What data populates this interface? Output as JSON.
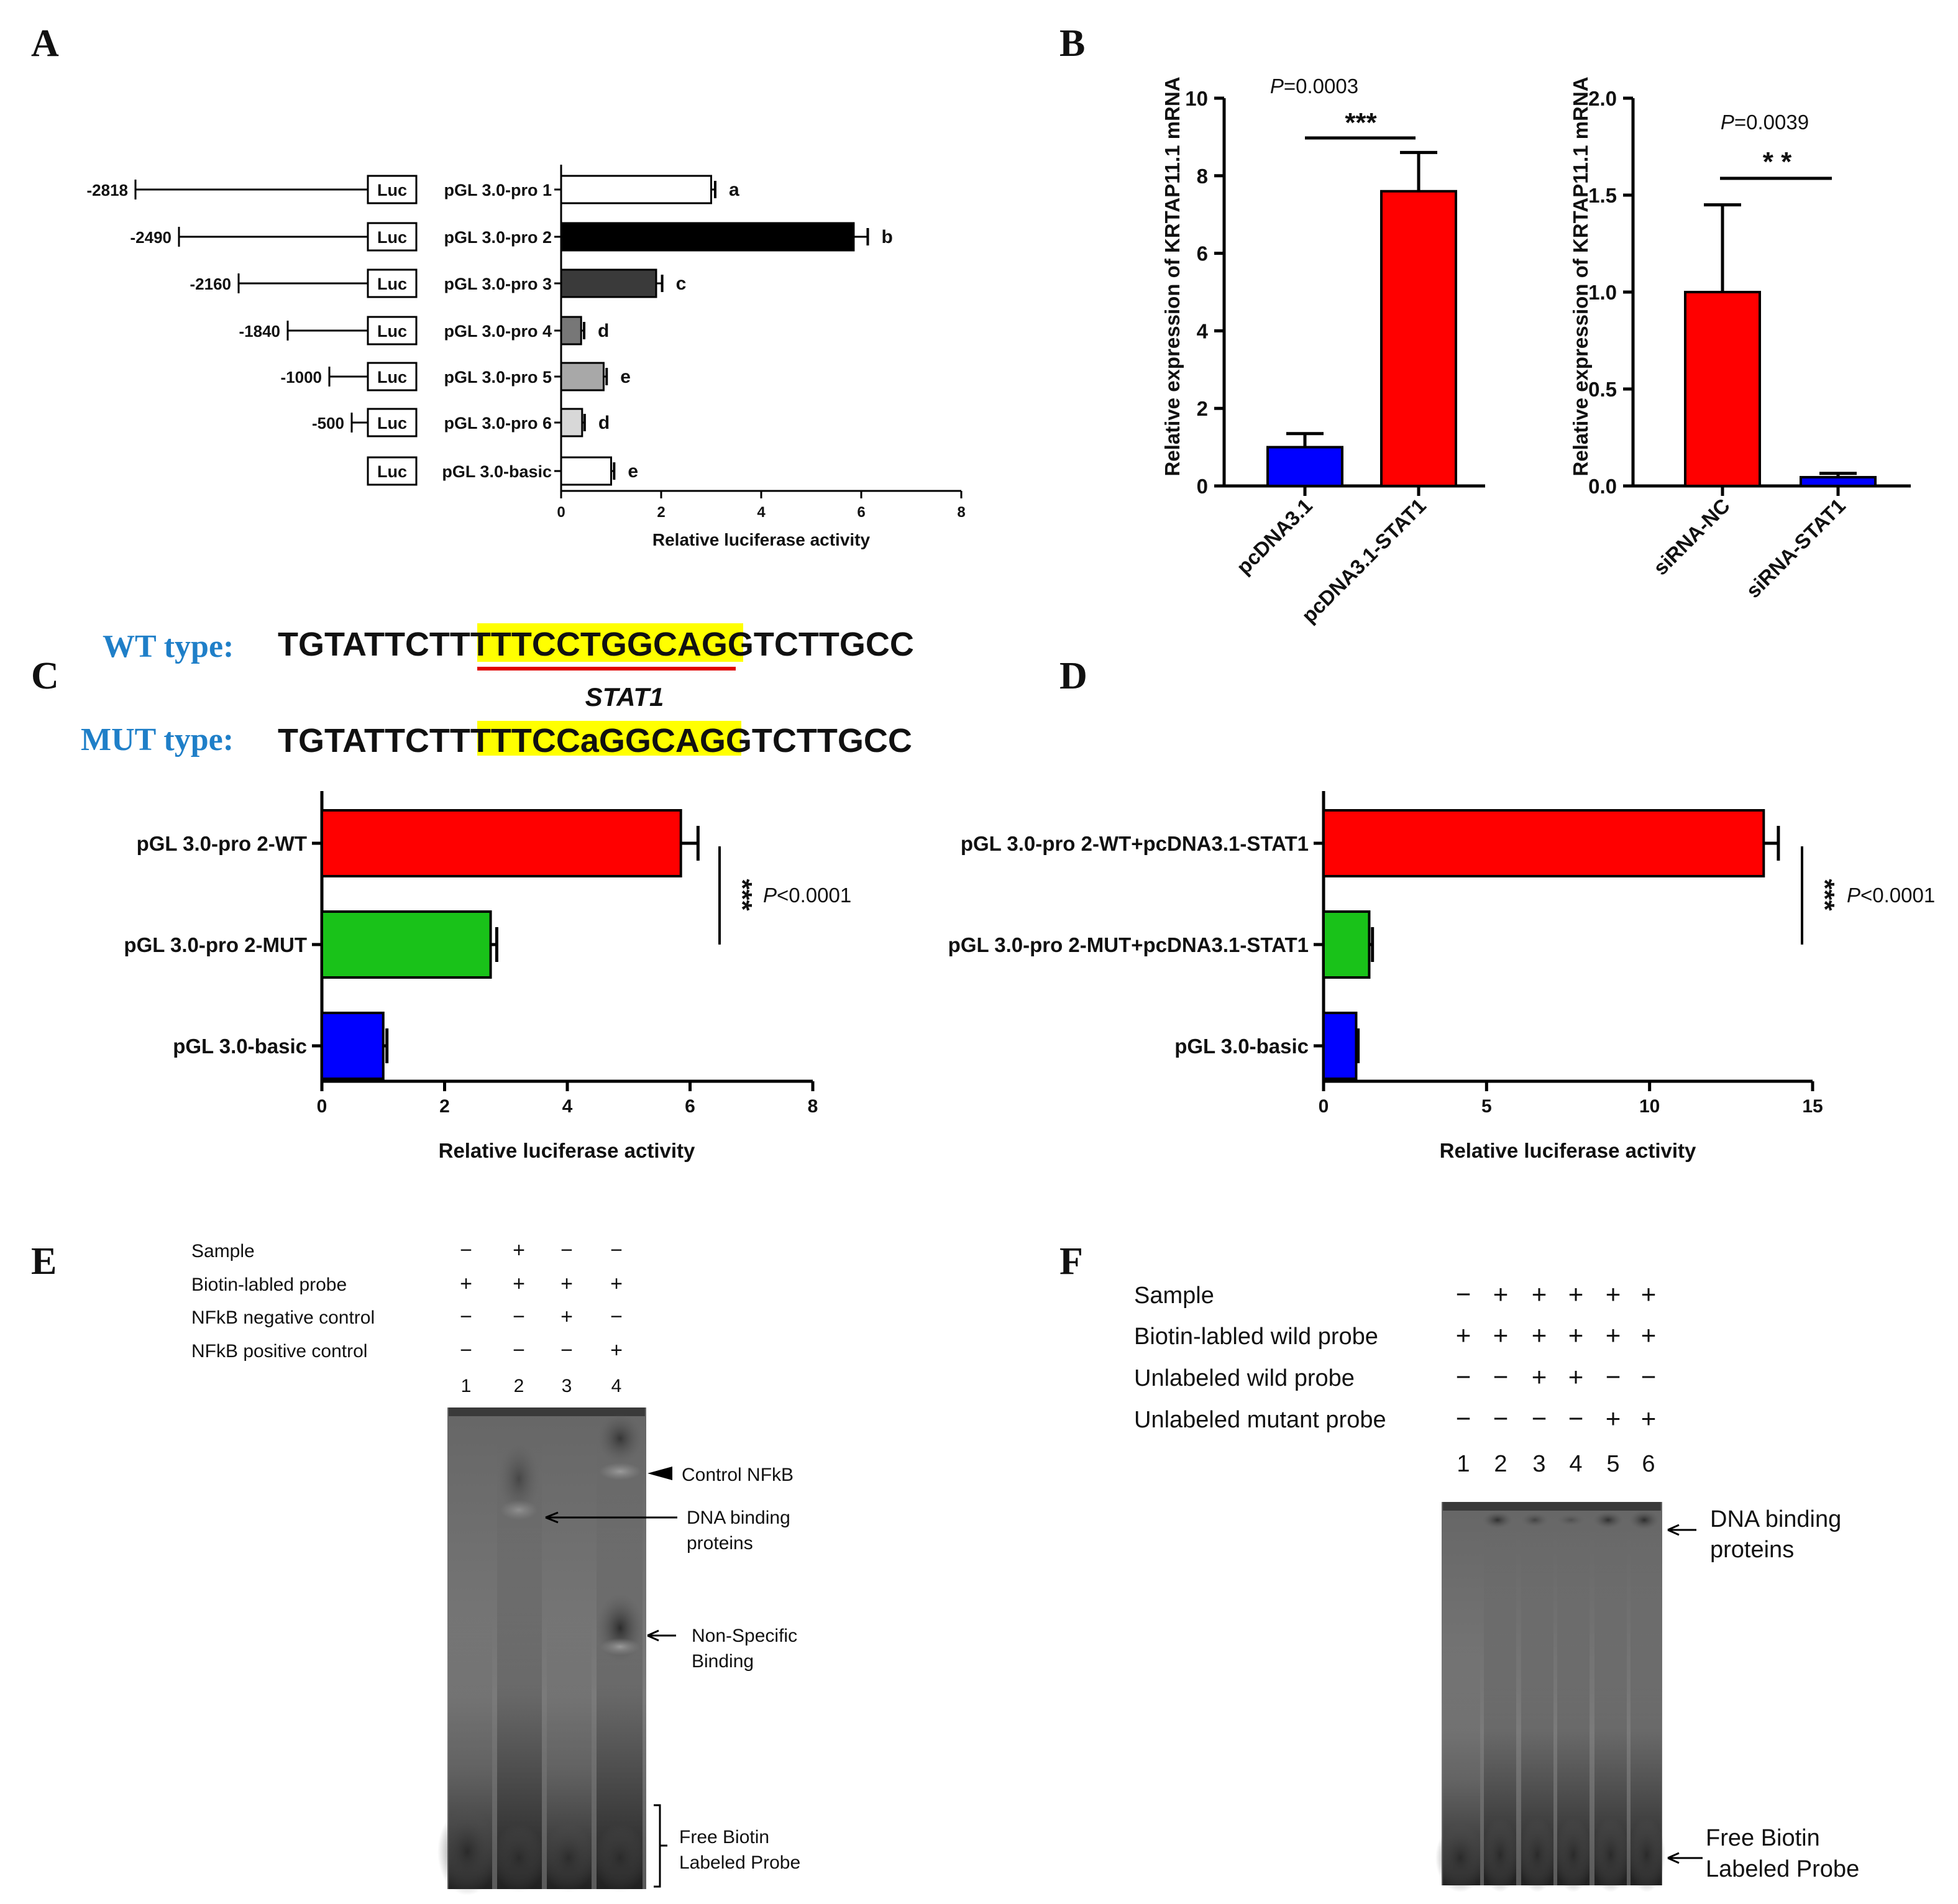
{
  "colors": {
    "red": "#ff0000",
    "green": "#19c219",
    "blue": "#0000ff",
    "gel": "#6f6f6f",
    "highlight": "#ffff00",
    "wt_label": "#1f7fc8"
  },
  "panelA": {
    "letter": "A",
    "xlabel": "Relative luciferase activity",
    "ticks": [
      "0",
      "2",
      "4",
      "6",
      "8"
    ],
    "luc_label": "Luc",
    "constructs": [
      {
        "pos": "-2818",
        "name": "pGL 3.0-pro 1",
        "value": 3.0,
        "err": 0.08,
        "letter": "a",
        "fill": "#ffffff"
      },
      {
        "pos": "-2490",
        "name": "pGL 3.0-pro 2",
        "value": 5.85,
        "err": 0.28,
        "letter": "b",
        "fill": "#000000"
      },
      {
        "pos": "-2160",
        "name": "pGL 3.0-pro 3",
        "value": 1.9,
        "err": 0.12,
        "letter": "c",
        "fill": "#3a3a3a"
      },
      {
        "pos": "-1840",
        "name": "pGL 3.0-pro 4",
        "value": 0.4,
        "err": 0.06,
        "letter": "d",
        "fill": "#777777"
      },
      {
        "pos": "-1000",
        "name": "pGL 3.0-pro 5",
        "value": 0.85,
        "err": 0.06,
        "letter": "e",
        "fill": "#a8a8a8"
      },
      {
        "pos": "-500",
        "name": "pGL 3.0-pro 6",
        "value": 0.42,
        "err": 0.05,
        "letter": "d",
        "fill": "#d8d8d8"
      },
      {
        "pos": "",
        "name": "pGL 3.0-basic",
        "value": 1.0,
        "err": 0.06,
        "letter": "e",
        "fill": "#ffffff"
      }
    ]
  },
  "panelB": {
    "letter": "B",
    "ylabel": "Relative expression of KRTAP11.1 mRNA",
    "left": {
      "p_label": "P",
      "p_value": "=0.0003",
      "stars": "***",
      "ticks": [
        "0",
        "2",
        "4",
        "6",
        "8",
        "10"
      ],
      "ylim": [
        0,
        10
      ],
      "categories": [
        "pcDNA3.1",
        "pcDNA3.1-STAT1"
      ],
      "values": [
        1.0,
        7.6
      ],
      "errors": [
        0.35,
        1.0
      ]
    },
    "right": {
      "p_label": "P",
      "p_value": "=0.0039",
      "stars": "* *",
      "ticks": [
        "0.0",
        "0.5",
        "1.0",
        "1.5",
        "2.0"
      ],
      "ylim": [
        0,
        2
      ],
      "categories": [
        "siRNA-NC",
        "siRNA-STAT1"
      ],
      "values": [
        1.0,
        0.045
      ],
      "errors": [
        0.45,
        0.02
      ]
    }
  },
  "sequence": {
    "wt_label": "WT type:",
    "wt_prefix": "TGTATTCTT",
    "wt_site": "TTTCCTGGCAG",
    "wt_suffix": "GTCTTGCC",
    "tf_label": "STAT1",
    "mut_label": "MUT type:",
    "mut_prefix": "TGTATTCTT",
    "mut_site": "TTTCCaGGCAG",
    "mut_suffix": "GTCTTGCC"
  },
  "panelC": {
    "letter": "C",
    "xlabel": "Relative luciferase activity",
    "ticks": [
      "0",
      "2",
      "4",
      "6",
      "8"
    ],
    "xlim": [
      0,
      8
    ],
    "categories": [
      "pGL 3.0-pro 2-WT",
      "pGL 3.0-pro 2-MUT",
      "pGL 3.0-basic"
    ],
    "values": [
      5.85,
      2.75,
      1.0
    ],
    "errors": [
      0.28,
      0.1,
      0.06
    ],
    "stars": "***",
    "p_label": "P",
    "p_value": "<0.0001"
  },
  "panelD": {
    "letter": "D",
    "xlabel": "Relative luciferase activity",
    "ticks": [
      "0",
      "5",
      "10",
      "15"
    ],
    "xlim": [
      0,
      15
    ],
    "categories": [
      "pGL 3.0-pro 2-WT+pcDNA3.1-STAT1",
      "pGL 3.0-pro 2-MUT+pcDNA3.1-STAT1",
      "pGL 3.0-basic"
    ],
    "values": [
      13.5,
      1.4,
      1.0
    ],
    "errors": [
      0.45,
      0.1,
      0.06
    ],
    "stars": "***",
    "p_label": "P",
    "p_value": "<0.0001"
  },
  "panelE": {
    "letter": "E",
    "row_labels": [
      "Sample",
      "Biotin-labled probe",
      "NFkB negative control",
      "NFkB positive control"
    ],
    "signs": [
      [
        "−",
        "+",
        "−",
        "−"
      ],
      [
        "+",
        "+",
        "+",
        "+"
      ],
      [
        "−",
        "−",
        "+",
        "−"
      ],
      [
        "−",
        "−",
        "−",
        "+"
      ]
    ],
    "lanes": [
      "1",
      "2",
      "3",
      "4"
    ],
    "annot_control": "Control NFkB",
    "annot_dna": [
      "DNA binding",
      "proteins"
    ],
    "annot_nonspecific": [
      "Non-Specific",
      "Binding"
    ],
    "annot_free": [
      "Free Biotin",
      "Labeled Probe"
    ]
  },
  "panelF": {
    "letter": "F",
    "row_labels": [
      "Sample",
      "Biotin-labled wild probe",
      "Unlabeled wild probe",
      "Unlabeled mutant probe"
    ],
    "signs": [
      [
        "−",
        "+",
        "+",
        "+",
        "+",
        "+"
      ],
      [
        "+",
        "+",
        "+",
        "+",
        "+",
        "+"
      ],
      [
        "−",
        "−",
        "+",
        "+",
        "−",
        "−"
      ],
      [
        "−",
        "−",
        "−",
        "−",
        "+",
        "+"
      ]
    ],
    "lanes": [
      "1",
      "2",
      "3",
      "4",
      "5",
      "6"
    ],
    "annot_dna": [
      "DNA binding",
      "proteins"
    ],
    "annot_free": [
      "Free Biotin",
      "Labeled Probe"
    ]
  }
}
